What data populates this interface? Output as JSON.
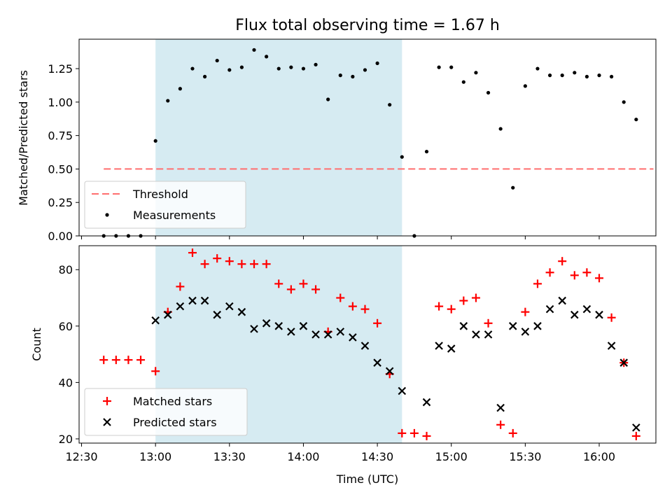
{
  "chart_data": {
    "title": "Flux total observing time = 1.67 h",
    "xlabel": "Time (UTC)",
    "x_tick_labels": [
      "12:30",
      "13:00",
      "13:30",
      "14:00",
      "14:30",
      "15:00",
      "15:30",
      "16:00"
    ],
    "x_tick_minutes": [
      750,
      780,
      810,
      840,
      870,
      900,
      930,
      960
    ],
    "xlim_minutes": [
      749,
      983
    ],
    "shaded_interval_minutes": [
      780,
      880
    ],
    "colors": {
      "shade": "#add8e6",
      "threshold": "#ff6f6f",
      "measurement": "#000000",
      "matched": "#ff0000",
      "predicted": "#000000"
    },
    "top": {
      "type": "scatter",
      "ylabel": "Matched/Predicted stars",
      "ylim": [
        0,
        1.47
      ],
      "y_ticks": [
        0.0,
        0.25,
        0.5,
        0.75,
        1.0,
        1.25
      ],
      "y_tick_labels": [
        "0.00",
        "0.25",
        "0.50",
        "0.75",
        "1.00",
        "1.25"
      ],
      "threshold": {
        "name": "Threshold",
        "value": 0.5,
        "x_range_minutes": [
          759,
          982
        ]
      },
      "measurements_name": "Measurements",
      "legend_position": "lower left",
      "x_minutes": [
        759,
        764,
        769,
        774,
        780,
        785,
        790,
        795,
        800,
        805,
        810,
        815,
        820,
        825,
        830,
        835,
        840,
        845,
        850,
        855,
        860,
        865,
        870,
        875,
        880,
        885,
        890,
        895,
        900,
        905,
        910,
        915,
        920,
        925,
        930,
        935,
        940,
        945,
        950,
        955,
        960,
        965,
        970,
        975
      ],
      "values": [
        0.0,
        0.0,
        0.0,
        0.0,
        0.71,
        1.01,
        1.1,
        1.25,
        1.19,
        1.31,
        1.24,
        1.26,
        1.39,
        1.34,
        1.25,
        1.26,
        1.25,
        1.28,
        1.02,
        1.2,
        1.19,
        1.24,
        1.29,
        0.98,
        0.59,
        0.0,
        0.63,
        1.26,
        1.26,
        1.15,
        1.22,
        1.07,
        0.8,
        0.36,
        1.12,
        1.25,
        1.2,
        1.2,
        1.22,
        1.19,
        1.2,
        1.19,
        1.0,
        0.87
      ]
    },
    "bottom": {
      "type": "scatter",
      "ylabel": "Count",
      "ylim": [
        18.5,
        88.5
      ],
      "y_ticks": [
        20,
        40,
        60,
        80
      ],
      "y_tick_labels": [
        "20",
        "40",
        "60",
        "80"
      ],
      "legend_position": "lower left",
      "series": [
        {
          "name": "Matched stars",
          "marker": "plus",
          "x_minutes": [
            759,
            764,
            769,
            774,
            780,
            785,
            790,
            795,
            800,
            805,
            810,
            815,
            820,
            825,
            830,
            835,
            840,
            845,
            850,
            855,
            860,
            865,
            870,
            875,
            880,
            885,
            890,
            895,
            900,
            905,
            910,
            915,
            920,
            925,
            930,
            935,
            940,
            945,
            950,
            955,
            960,
            965,
            970,
            975
          ],
          "values": [
            48,
            48,
            48,
            48,
            44,
            65,
            74,
            86,
            82,
            84,
            83,
            82,
            82,
            82,
            75,
            73,
            75,
            73,
            58,
            70,
            67,
            66,
            61,
            43,
            22,
            22,
            21,
            67,
            66,
            69,
            70,
            61,
            25,
            22,
            65,
            75,
            79,
            83,
            78,
            79,
            77,
            63,
            47,
            21
          ]
        },
        {
          "name": "Predicted stars",
          "marker": "x",
          "x_minutes": [
            780,
            785,
            790,
            795,
            800,
            805,
            810,
            815,
            820,
            825,
            830,
            835,
            840,
            845,
            850,
            855,
            860,
            865,
            870,
            875,
            880,
            890,
            895,
            900,
            905,
            910,
            915,
            920,
            925,
            930,
            935,
            940,
            945,
            950,
            955,
            960,
            965,
            970,
            975
          ],
          "values": [
            62,
            64,
            67,
            69,
            69,
            64,
            67,
            65,
            59,
            61,
            60,
            58,
            60,
            57,
            57,
            58,
            56,
            53,
            47,
            44,
            37,
            33,
            53,
            52,
            60,
            57,
            57,
            31,
            60,
            58,
            60,
            66,
            69,
            64,
            66,
            64,
            53,
            47,
            24
          ]
        }
      ]
    }
  }
}
